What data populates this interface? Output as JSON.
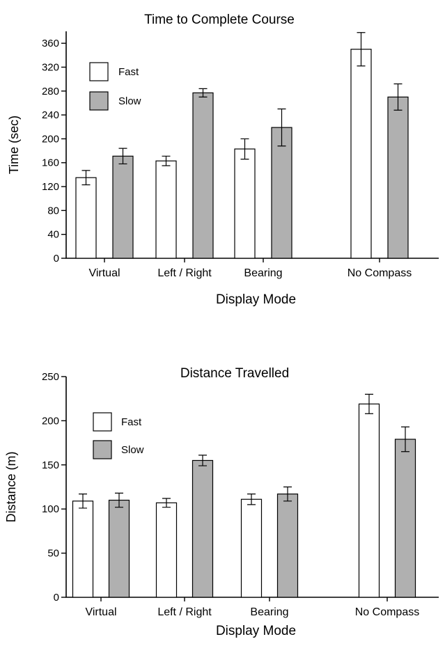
{
  "chart_data": [
    {
      "type": "bar",
      "title": "Time to Complete Course",
      "xlabel": "Display Mode",
      "ylabel": "Time (sec)",
      "ylim": [
        0,
        380
      ],
      "yticks": [
        "0",
        "40",
        "80",
        "120",
        "160",
        "200",
        "240",
        "280",
        "320",
        "360"
      ],
      "categories": [
        "Virtual",
        "Left / Right",
        "Bearing",
        "No Compass"
      ],
      "legend_position": "top-left",
      "series": [
        {
          "name": "Fast",
          "color": "#ffffff",
          "values": [
            135,
            163,
            183,
            350
          ],
          "errors": [
            12,
            8,
            17,
            28
          ]
        },
        {
          "name": "Slow",
          "color": "#b0b0b0",
          "values": [
            171,
            277,
            219,
            270
          ],
          "errors": [
            13,
            7,
            31,
            22
          ]
        }
      ]
    },
    {
      "type": "bar",
      "title": "Distance Travelled",
      "xlabel": "Display Mode",
      "ylabel": "Distance (m)",
      "ylim": [
        0,
        250
      ],
      "yticks": [
        "0",
        "50",
        "100",
        "150",
        "200",
        "250"
      ],
      "categories": [
        "Virtual",
        "Left / Right",
        "Bearing",
        "No Compass"
      ],
      "legend_position": "top-left",
      "series": [
        {
          "name": "Fast",
          "color": "#ffffff",
          "values": [
            109,
            107,
            111,
            219
          ],
          "errors": [
            8,
            5,
            6,
            11
          ]
        },
        {
          "name": "Slow",
          "color": "#b0b0b0",
          "values": [
            110,
            155,
            117,
            179
          ],
          "errors": [
            8,
            6,
            8,
            14
          ]
        }
      ]
    }
  ]
}
